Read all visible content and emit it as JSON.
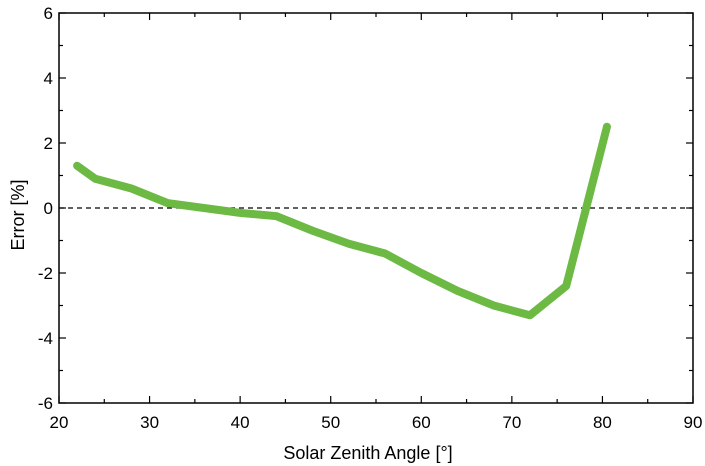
{
  "chart_data": {
    "type": "line",
    "xlabel": "Solar Zenith Angle [°]",
    "ylabel": "Error [%]",
    "xlim": [
      20,
      90
    ],
    "ylim": [
      -6,
      6
    ],
    "xticks": [
      20,
      30,
      40,
      50,
      60,
      70,
      80,
      90
    ],
    "yticks": [
      -6,
      -4,
      -2,
      0,
      2,
      4,
      6
    ],
    "grid": false,
    "reference_line": {
      "y": 0,
      "style": "dashed"
    },
    "series": [
      {
        "color": "#6cba44",
        "x": [
          22,
          24,
          28,
          32,
          36,
          40,
          44,
          48,
          52,
          56,
          60,
          64,
          68,
          72,
          76,
          80.5
        ],
        "y": [
          1.3,
          0.9,
          0.6,
          0.15,
          0.0,
          -0.15,
          -0.25,
          -0.7,
          -1.1,
          -1.4,
          -2.0,
          -2.55,
          -3.0,
          -3.3,
          -2.4,
          2.5
        ]
      }
    ]
  }
}
